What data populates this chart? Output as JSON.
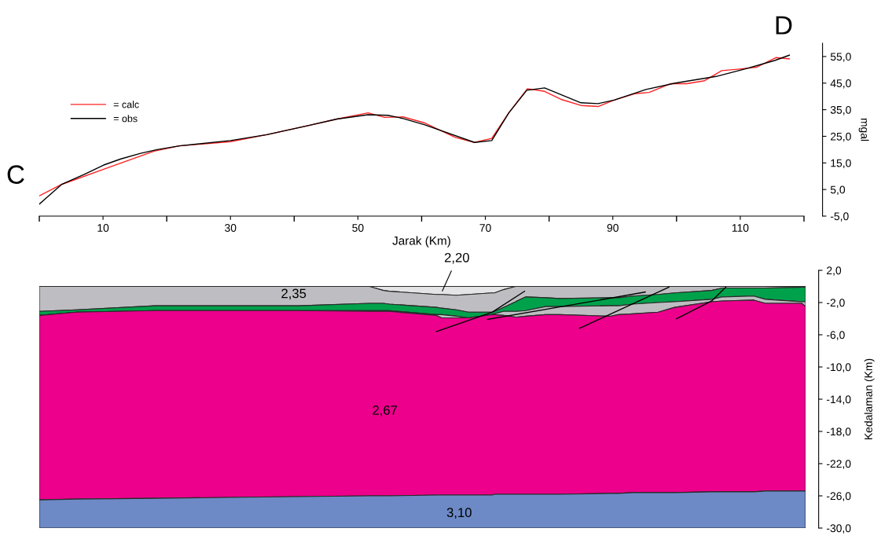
{
  "chart_data": [
    {
      "type": "line",
      "xlabel": "Jarak (Km)",
      "ylabel": "mgal",
      "annotations": [
        "C",
        "D"
      ],
      "xlim": [
        0,
        120
      ],
      "ylim": [
        -5,
        60
      ],
      "xticks": [
        {
          "value": 0,
          "label": null
        },
        10,
        {
          "value": 20,
          "label": null
        },
        30,
        {
          "value": 40,
          "label": null
        },
        50,
        {
          "value": 60,
          "label": null
        },
        70,
        {
          "value": 80,
          "label": null
        },
        90,
        {
          "value": 100,
          "label": null
        },
        110,
        {
          "value": 120,
          "label": null
        }
      ],
      "yticks": [
        {
          "value": -5,
          "label": "-5,0"
        },
        {
          "value": 5,
          "label": "5,0"
        },
        {
          "value": 15,
          "label": "15,0"
        },
        {
          "value": 25,
          "label": "25,0"
        },
        {
          "value": 35,
          "label": "35,0"
        },
        {
          "value": 45,
          "label": "45,0"
        },
        {
          "value": 55,
          "label": "55,0"
        }
      ],
      "legend": "center left",
      "grid": false,
      "marker": "none",
      "line_style": "solid",
      "series": [
        {
          "name": "= calc",
          "color": "#ff2020",
          "x": [
            0,
            3.5,
            10.1,
            18,
            22,
            30,
            35.7,
            42.3,
            46.7,
            51.6,
            54.2,
            57.1,
            60.5,
            65.3,
            68.3,
            71,
            73.7,
            76.6,
            79.3,
            82,
            85,
            87.7,
            90.2,
            93.4,
            95.7,
            99.1,
            101.6,
            104.4,
            107.1,
            109.9,
            112.6,
            115.6,
            117.7
          ],
          "values": [
            2.6,
            6.9,
            12.6,
            19.4,
            21.4,
            23,
            25.6,
            29.1,
            31.5,
            33.8,
            32.1,
            32.3,
            30,
            24.6,
            22.7,
            24.2,
            33.9,
            42.9,
            41.9,
            38.8,
            36.6,
            36.2,
            38.6,
            41,
            41.5,
            44.8,
            44.8,
            45.9,
            49.7,
            50.3,
            51,
            54.6,
            54.1
          ]
        },
        {
          "name": "= obs",
          "color": "#000000",
          "x": [
            0,
            3.5,
            7,
            10.1,
            12.8,
            15.9,
            18.5,
            22,
            30,
            35.7,
            42.3,
            46.7,
            51.6,
            54.7,
            56.9,
            60.5,
            68.3,
            71,
            73.7,
            76.5,
            79.3,
            85,
            87.7,
            90.2,
            95.2,
            99.8,
            106.2,
            110.7,
            115.4,
            117.7
          ],
          "values": [
            -0.5,
            6.9,
            10.6,
            14.2,
            16.5,
            18.6,
            20,
            21.4,
            23.4,
            25.6,
            29.1,
            31.5,
            33.1,
            32.9,
            31.8,
            29.3,
            22.7,
            23.4,
            33.9,
            42.3,
            43.2,
            37.6,
            37.3,
            38.6,
            42.6,
            45,
            47.5,
            50.3,
            53.5,
            55.5
          ]
        }
      ]
    },
    {
      "type": "area",
      "stacked": true,
      "x": [
        0,
        5.8,
        18.1,
        29.6,
        40.6,
        51.7,
        53.9,
        54.8,
        62.2,
        63,
        65.3,
        67.2,
        70.9,
        71.3,
        72.7,
        74.6,
        74.8,
        76.2,
        79.3,
        81.5,
        89.4,
        90.7,
        93,
        96.9,
        99.5,
        105.3,
        107,
        111.9,
        113.7,
        119.4,
        120
      ],
      "ylabel": "Kedalaman (Km)",
      "xlim": [
        0,
        120
      ],
      "ylim": [
        -30,
        2
      ],
      "tick_labels": "y",
      "grid": false,
      "yticks": [
        {
          "value": 2,
          "label": "2,0"
        },
        {
          "value": -2,
          "label": "-2,0"
        },
        {
          "value": -6,
          "label": "-6,0"
        },
        {
          "value": -10,
          "label": "-10,0"
        },
        {
          "value": -14,
          "label": "-14,0"
        },
        {
          "value": -18,
          "label": "-18,0"
        },
        {
          "value": -22,
          "label": "-22,0"
        },
        {
          "value": -26,
          "label": "-26,0"
        },
        {
          "value": -30,
          "label": "-30,0"
        }
      ],
      "annotations": [
        "2,35",
        "2,20",
        "2,67",
        "3,10"
      ],
      "series": [
        {
          "color": "#e4e4e6",
          "values": [
            0,
            0,
            0,
            0,
            0,
            0,
            -0.5,
            -0.6,
            -1.0,
            -1.0,
            -1.1,
            -1.0,
            -0.8,
            -0.8,
            -0.4,
            0,
            0,
            0,
            0,
            0,
            0,
            0,
            0,
            0,
            0,
            0,
            0,
            0,
            0,
            0,
            0
          ]
        },
        {
          "color": "#bebec2",
          "values": [
            -3.1,
            -2.9,
            -2.4,
            -2.4,
            -2.4,
            -2.1,
            -1.6,
            -1.6,
            -1.6,
            -1.7,
            -1.8,
            -2.2,
            -2.4,
            -2.3,
            -2.2,
            -1.9,
            -1.8,
            -1.3,
            -1.4,
            -1.5,
            -1.4,
            -1.4,
            -1.2,
            -1.0,
            -0.8,
            -0.5,
            -0.2,
            -0.2,
            -0.2,
            -0.1,
            -0.1
          ]
        },
        {
          "color": "#00a14b",
          "values": [
            -0.5,
            -0.3,
            -0.6,
            -0.6,
            -0.6,
            -0.9,
            -0.9,
            -0.8,
            -0.9,
            -0.8,
            -0.8,
            -0.7,
            -0.3,
            -0.3,
            -0.5,
            -1.2,
            -1.3,
            -1.7,
            -1.1,
            -1.0,
            -1.0,
            -1.0,
            -1.0,
            -1.0,
            -1.1,
            -1.1,
            -1.1,
            -1.0,
            -1.4,
            -1.8,
            -1.8
          ]
        },
        {
          "color": "#bebec2",
          "values": [
            0,
            0,
            0,
            0,
            0,
            -0.1,
            -0.1,
            -0.1,
            -0.1,
            -0.4,
            -0.2,
            0,
            0,
            -0.1,
            -0.5,
            -0.7,
            -0.7,
            -0.7,
            -1.0,
            -1.0,
            -1.3,
            -1.1,
            -1.2,
            -1.2,
            -0.7,
            -0.3,
            -0.5,
            -0.5,
            -0.5,
            -0.2,
            -0.6
          ]
        },
        {
          "color": "#ec008c",
          "values": [
            -22.9,
            -23.2,
            -23.3,
            -23.2,
            -23.1,
            -22.9,
            -22.9,
            -22.9,
            -22.3,
            -22.0,
            -22.0,
            -22.0,
            -22.4,
            -22.3,
            -22.2,
            -22.0,
            -22.0,
            -22.1,
            -22.3,
            -22.3,
            -22.0,
            -22.2,
            -22.2,
            -22.4,
            -23.0,
            -23.6,
            -23.7,
            -23.8,
            -23.3,
            -23.3,
            -22.9
          ]
        },
        {
          "color": "#6d8ac6",
          "values": [
            -3.5,
            -3.6,
            -3.7,
            -3.8,
            -3.9,
            -4.0,
            -4.0,
            -4.0,
            -4.1,
            -4.1,
            -4.1,
            -4.1,
            -4.1,
            -4.2,
            -4.2,
            -4.2,
            -4.2,
            -4.2,
            -4.2,
            -4.2,
            -4.3,
            -4.3,
            -4.4,
            -4.4,
            -4.4,
            -4.5,
            -4.5,
            -4.5,
            -4.6,
            -4.6,
            -4.6
          ]
        },
        {
          "type": "line",
          "color": "#000000",
          "x": [
            62.2,
            70.9,
            76.0
          ],
          "values": [
            -5.6,
            -3.2,
            -0.6
          ]
        },
        {
          "type": "line",
          "color": "#000000",
          "x": [
            70.2,
            94.9
          ],
          "values": [
            -4.1,
            -0.7
          ]
        },
        {
          "type": "line",
          "color": "#000000",
          "x": [
            84.6,
            98.6
          ],
          "values": [
            -5.2,
            -0.1
          ]
        },
        {
          "type": "line",
          "color": "#000000",
          "x": [
            99.8,
            105.3,
            107.5
          ],
          "values": [
            -4.0,
            -1.8,
            -0.1
          ]
        }
      ]
    }
  ]
}
